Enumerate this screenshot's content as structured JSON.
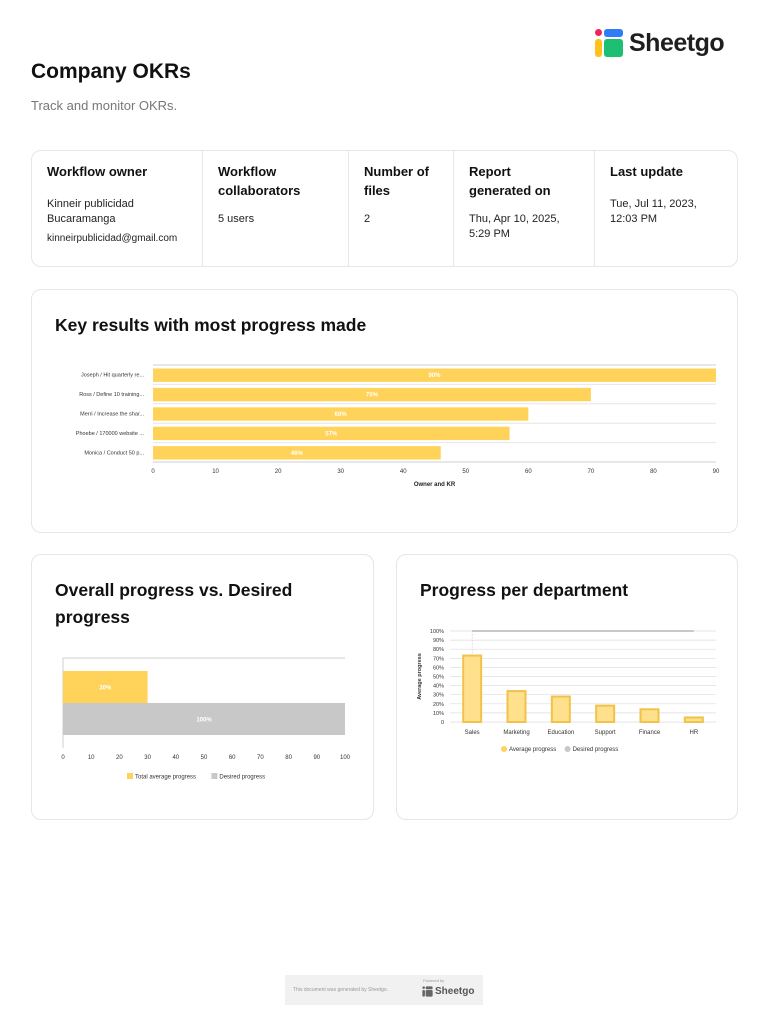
{
  "brand": {
    "name": "Sheetgo"
  },
  "header": {
    "title": "Company OKRs",
    "subtitle": "Track and monitor OKRs."
  },
  "info": {
    "owner_label": "Workflow owner",
    "owner_name": "Kinneir publicidad Bucaramanga",
    "owner_email": "kinneirpublicidad@gmail.com",
    "collab_label": "Workflow collaborators",
    "collab_value": "5 users",
    "files_label": "Number of files",
    "files_value": "2",
    "report_label": "Report generated on",
    "report_value": "Thu, Apr 10, 2025, 5:29 PM",
    "update_label": "Last update",
    "update_value": "Tue, Jul 11, 2023, 12:03 PM"
  },
  "footer": {
    "text": "This document was generated by Sheetgo.",
    "powered": "Powered by",
    "brand": "Sheetgo"
  },
  "colors": {
    "accent": "#ffd25a",
    "accent_border": "#f2c24a",
    "gray": "#c8c8c8",
    "text": "#111111",
    "muted": "#777777"
  },
  "chart_data": [
    {
      "type": "bar",
      "orientation": "horizontal",
      "title": "Key results with most progress made",
      "xlabel": "Owner and KR",
      "ylabel": "",
      "xlim": [
        0,
        90
      ],
      "ticks": [
        0,
        10,
        20,
        30,
        40,
        50,
        60,
        70,
        80,
        90
      ],
      "categories": [
        "Joseph / Hit quarterly re...",
        "Ross / Define 10 training...",
        "Merri / Increase the shar...",
        "Phoebe / 170000 website ...",
        "Monica / Conduct 50 p..."
      ],
      "values": [
        90,
        70,
        60,
        57,
        46
      ],
      "labels": [
        "90%",
        "70%",
        "60%",
        "57%",
        "46%"
      ],
      "color": "#ffd25a",
      "grid": true
    },
    {
      "type": "bar",
      "orientation": "horizontal",
      "title": "Overall progress vs. Desired progress",
      "xlim": [
        0,
        100
      ],
      "ticks": [
        0,
        10,
        20,
        30,
        40,
        50,
        60,
        70,
        80,
        90,
        100
      ],
      "series": [
        {
          "name": "Total average progress",
          "values": [
            30
          ],
          "label": "30%",
          "color": "#ffd25a"
        },
        {
          "name": "Desired progress",
          "values": [
            100
          ],
          "label": "100%",
          "color": "#c8c8c8"
        }
      ],
      "legend": "bottom"
    },
    {
      "type": "bar",
      "title": "Progress per department",
      "ylabel": "Average progress",
      "ylim": [
        0,
        100
      ],
      "ticks": [
        "0",
        "10%",
        "20%",
        "30%",
        "40%",
        "50%",
        "60%",
        "70%",
        "80%",
        "90%",
        "100%"
      ],
      "categories": [
        "Sales",
        "Marketing",
        "Education",
        "Support",
        "Finance",
        "HR"
      ],
      "series": [
        {
          "name": "Average progress",
          "values": [
            73,
            34,
            28,
            18,
            14,
            5
          ],
          "color": "#ffd25a"
        },
        {
          "name": "Desired progress",
          "values": [
            100,
            100,
            100,
            100,
            100,
            100
          ],
          "color": "#c8c8c8"
        }
      ],
      "legend": "bottom",
      "grid": true
    }
  ]
}
